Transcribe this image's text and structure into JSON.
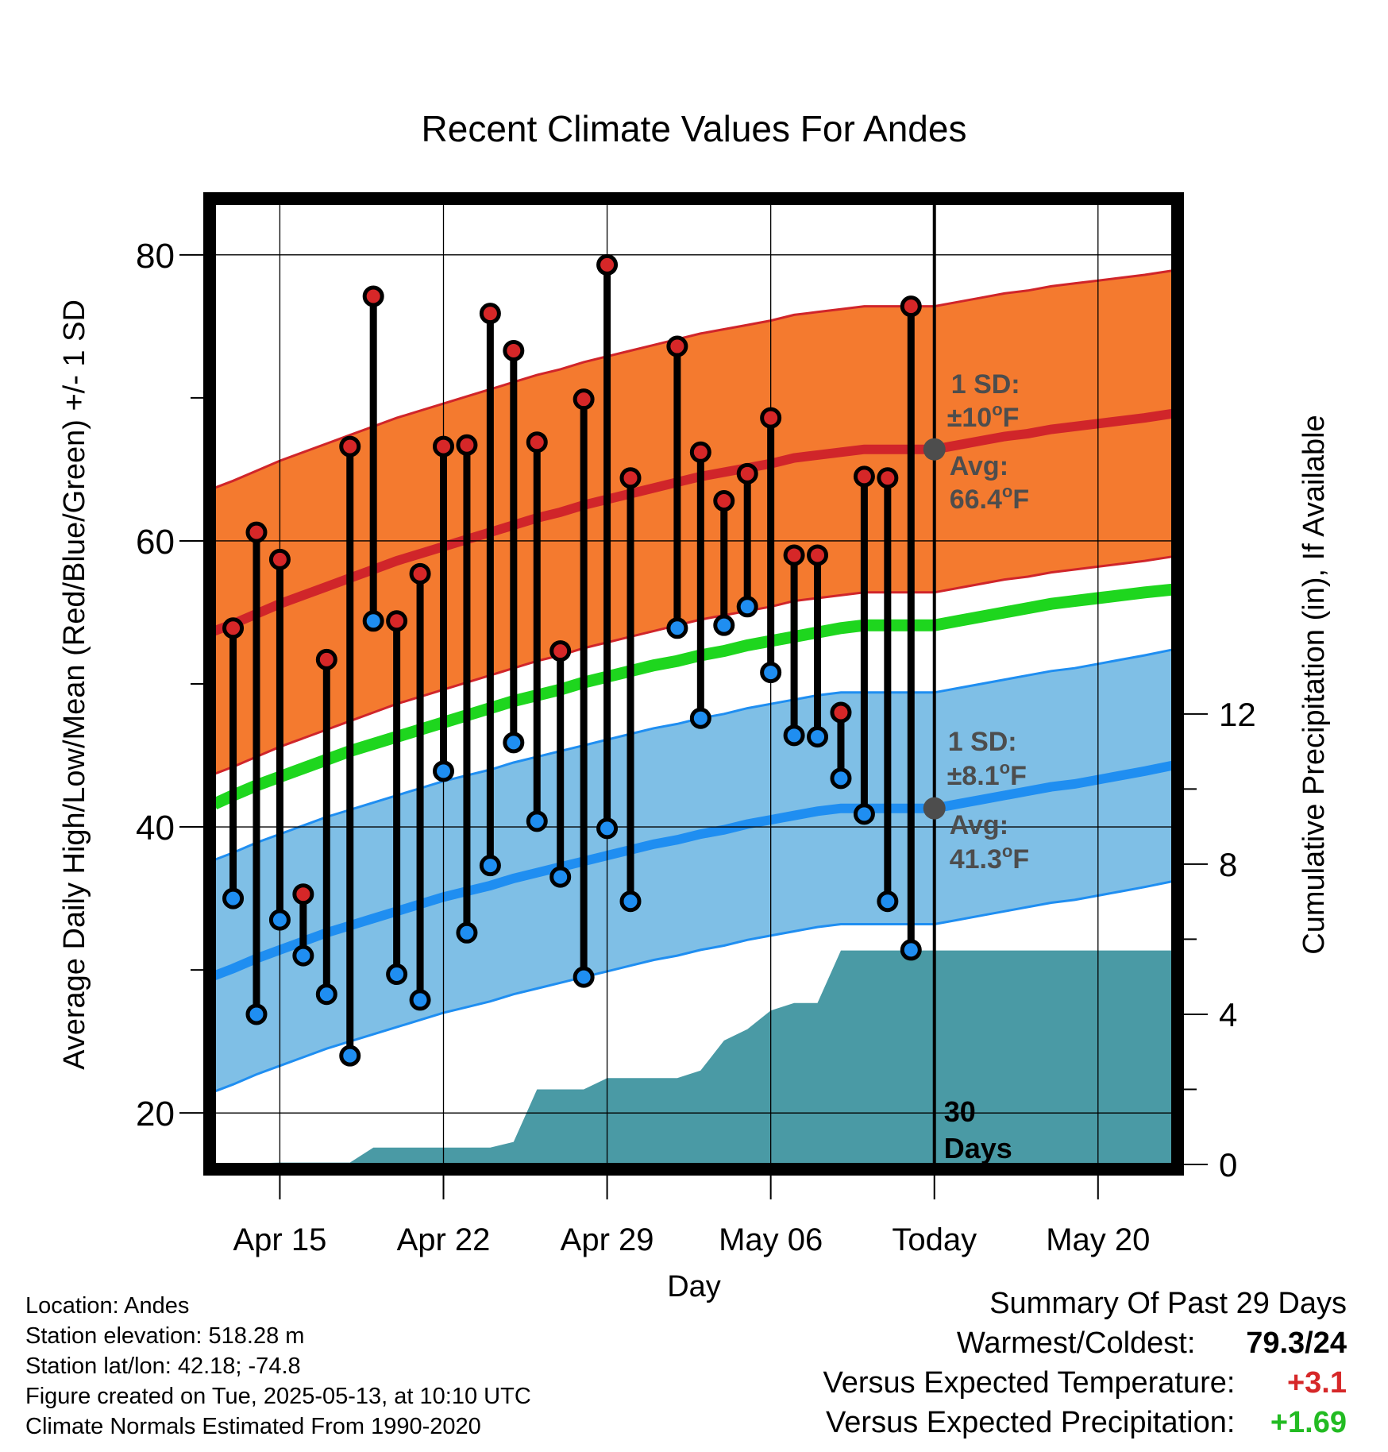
{
  "chart_data": {
    "type": "bar",
    "title": "Recent Climate Values For Andes",
    "xlabel": "Day",
    "ylabel_left": "Average Daily High/Low/Mean (Red/Blue/Green) +/- 1 SD",
    "ylabel_right": "Cumulative Precipitation (in), If Available",
    "ylim_left": [
      16.4,
      83.6
    ],
    "ylim_right": [
      0,
      25.6
    ],
    "yticks_left": [
      20,
      40,
      60,
      80
    ],
    "yticks_right": [
      0,
      4,
      8,
      12
    ],
    "x_range": [
      -0.8,
      40.2
    ],
    "xticks": [
      {
        "day": 2,
        "label": "Apr 15"
      },
      {
        "day": 9,
        "label": "Apr 22"
      },
      {
        "day": 16,
        "label": "Apr 29"
      },
      {
        "day": 23,
        "label": "May 06"
      },
      {
        "day": 30,
        "label": "Today"
      },
      {
        "day": 37,
        "label": "May 20"
      }
    ],
    "today_day": 30,
    "today_label_line1": "30",
    "today_label_line2": "Days",
    "grid": true,
    "days": [
      -0.8,
      0,
      1,
      2,
      3,
      4,
      5,
      6,
      7,
      8,
      9,
      10,
      11,
      12,
      13,
      14,
      15,
      16,
      17,
      18,
      19,
      20,
      21,
      22,
      23,
      24,
      25,
      26,
      27,
      28,
      29,
      30,
      31,
      32,
      33,
      34,
      35,
      36,
      37,
      38,
      39,
      40.2
    ],
    "normal_high": [
      53.7,
      54.2,
      54.9,
      55.6,
      56.2,
      56.8,
      57.4,
      58.0,
      58.6,
      59.1,
      59.6,
      60.1,
      60.6,
      61.1,
      61.6,
      62.0,
      62.5,
      62.9,
      63.3,
      63.7,
      64.1,
      64.5,
      64.8,
      65.1,
      65.4,
      65.8,
      66.0,
      66.2,
      66.4,
      66.4,
      66.4,
      66.4,
      66.7,
      67.0,
      67.3,
      67.5,
      67.8,
      68.0,
      68.2,
      68.4,
      68.6,
      68.9
    ],
    "high_sd": 10,
    "normal_low": [
      29.6,
      30.1,
      30.8,
      31.4,
      32.0,
      32.6,
      33.1,
      33.6,
      34.1,
      34.6,
      35.1,
      35.5,
      35.9,
      36.4,
      36.8,
      37.2,
      37.6,
      38.0,
      38.4,
      38.8,
      39.1,
      39.5,
      39.8,
      40.2,
      40.5,
      40.8,
      41.1,
      41.3,
      41.3,
      41.3,
      41.3,
      41.3,
      41.6,
      41.9,
      42.2,
      42.5,
      42.8,
      43.0,
      43.3,
      43.6,
      43.9,
      44.3
    ],
    "low_sd": 8.1,
    "normal_mean": [
      41.6,
      42.2,
      42.9,
      43.5,
      44.1,
      44.7,
      45.3,
      45.8,
      46.3,
      46.8,
      47.3,
      47.8,
      48.3,
      48.8,
      49.2,
      49.6,
      50.1,
      50.5,
      50.9,
      51.3,
      51.6,
      52.0,
      52.3,
      52.7,
      53.0,
      53.3,
      53.6,
      53.9,
      54.1,
      54.1,
      54.1,
      54.1,
      54.4,
      54.7,
      55.0,
      55.3,
      55.6,
      55.8,
      56.0,
      56.2,
      56.4,
      56.6
    ],
    "series": [
      {
        "name": "Daily High",
        "color": "#d62728",
        "values": [
          53.9,
          60.6,
          58.7,
          35.3,
          51.7,
          66.6,
          77.1,
          54.4,
          57.7,
          66.6,
          66.7,
          75.9,
          73.3,
          66.9,
          52.3,
          69.9,
          79.3,
          64.4,
          null,
          73.6,
          66.2,
          62.8,
          64.7,
          68.6,
          59.0,
          59.0,
          48.0,
          64.5,
          64.4,
          76.4
        ]
      },
      {
        "name": "Daily Low",
        "color": "#1f8ef1",
        "values": [
          35.0,
          26.9,
          33.5,
          31.0,
          28.3,
          24.0,
          54.4,
          29.7,
          27.9,
          43.9,
          32.6,
          37.3,
          45.9,
          40.4,
          36.5,
          29.5,
          39.9,
          34.8,
          null,
          53.9,
          47.6,
          54.1,
          55.4,
          50.8,
          46.4,
          46.3,
          43.4,
          40.9,
          34.8,
          31.4
        ]
      }
    ],
    "precip_cumulative": {
      "days": [
        -0.8,
        2,
        3,
        4,
        5,
        6,
        7,
        8,
        9,
        10,
        11,
        12,
        13,
        14,
        15,
        16,
        17,
        18,
        19,
        20,
        21,
        22,
        23,
        24,
        25,
        26,
        27,
        28,
        29,
        30,
        31,
        32,
        33,
        34,
        35,
        36,
        37,
        38,
        39,
        40.2
      ],
      "values": [
        0,
        0.05,
        0.05,
        0.05,
        0.05,
        0.45,
        0.45,
        0.45,
        0.45,
        0.45,
        0.45,
        0.6,
        2.0,
        2.0,
        2.0,
        2.3,
        2.3,
        2.3,
        2.3,
        2.5,
        3.3,
        3.6,
        4.1,
        4.3,
        4.3,
        5.7,
        5.7,
        5.7,
        5.7,
        5.7,
        5.7,
        5.7,
        5.7,
        5.7,
        5.7,
        5.7,
        5.7,
        5.7,
        5.7,
        5.7
      ]
    },
    "annotations": {
      "high_sd_line1": "1 SD:",
      "high_sd_line2_value": "±10",
      "high_avg_line1": "Avg:",
      "high_avg_line2_value": "66.4",
      "high_avg_value": 66.4,
      "low_sd_line1": "1 SD:",
      "low_sd_line2_value": "±8.1",
      "low_avg_line1": "Avg:",
      "low_avg_line2_value": "41.3",
      "low_avg_value": 41.3,
      "degree_symbol": "o",
      "unit": "F"
    },
    "colors": {
      "high_band": "#f47a2f",
      "high_line": "#d0252a",
      "low_band": "#7fbfe6",
      "low_line": "#1f8ef1",
      "mean_line": "#1ed61e",
      "precip": "#4a9aa5",
      "annotation": "#4d4d4d"
    }
  },
  "info": {
    "location": "Location: Andes",
    "elevation": "Station elevation: 518.28 m",
    "latlon": "Station lat/lon: 42.18; -74.8",
    "created": "Figure created on Tue, 2025-05-13, at 10:10 UTC",
    "normals": "Climate Normals Estimated From 1990-2020"
  },
  "summary": {
    "title": "Summary Of Past 29 Days",
    "warm_cold_label": "Warmest/Coldest:",
    "warm_cold_value": "79.3/24",
    "temp_label": "Versus Expected Temperature:",
    "temp_value": "+3.1",
    "temp_color": "#d62728",
    "precip_label": "Versus Expected Precipitation:",
    "precip_value": "+1.69",
    "precip_color": "#22bb22"
  }
}
